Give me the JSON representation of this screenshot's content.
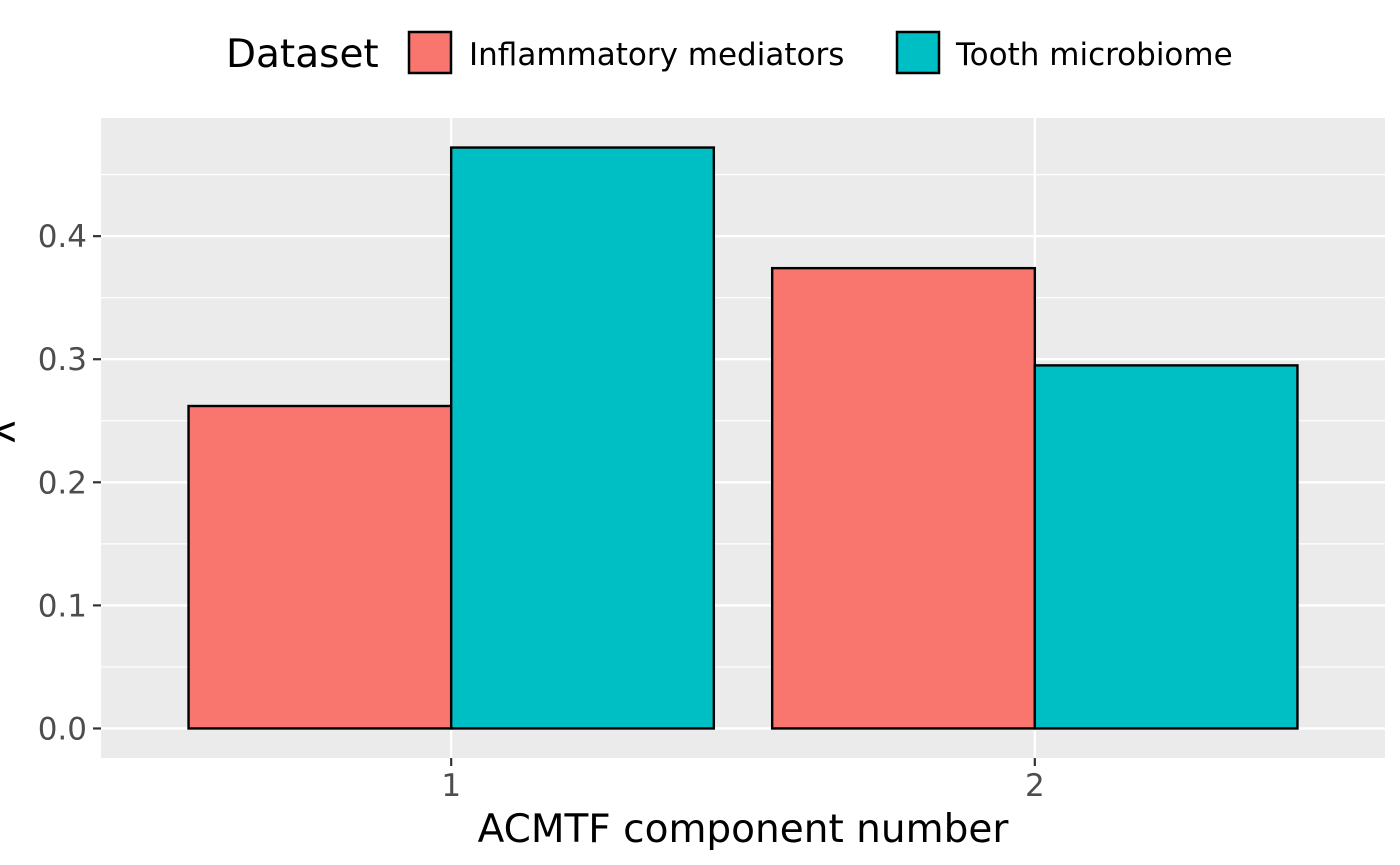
{
  "chart_data": {
    "type": "bar",
    "title": "",
    "xlabel": "ACMTF component number",
    "ylabel": "λ",
    "categories": [
      "1",
      "2"
    ],
    "series": [
      {
        "name": "Inflammatory mediators",
        "values": [
          0.262,
          0.374
        ],
        "color": "#F8766D"
      },
      {
        "name": "Tooth microbiome",
        "values": [
          0.472,
          0.295
        ],
        "color": "#00BFC4"
      }
    ],
    "ylim": [
      -0.024,
      0.496
    ],
    "yticks": [
      0.0,
      0.1,
      0.2,
      0.3,
      0.4
    ],
    "ytick_labels": [
      "0.0",
      "0.1",
      "0.2",
      "0.3",
      "0.4"
    ],
    "grid": true,
    "panel_color": "#EBEBEB",
    "legend": {
      "title": "Dataset",
      "position": "top"
    }
  }
}
